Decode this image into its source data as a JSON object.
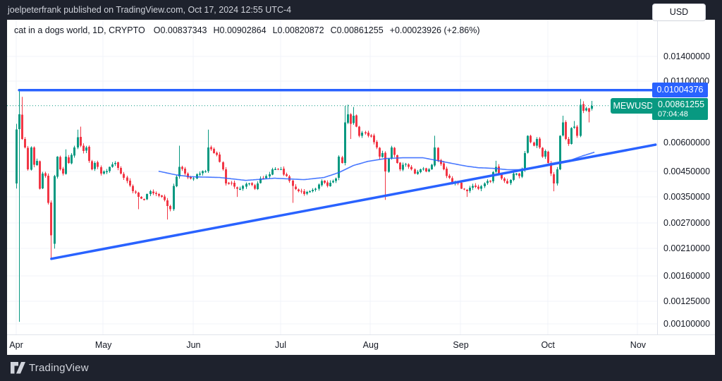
{
  "header_bar": {
    "text": "joelpeterfrank published on TradingView.com, Oct 17, 2024 12:55 UTC-4"
  },
  "legend": {
    "symbol_title": "cat in a dogs world, 1D, CRYPTO",
    "open": "O0.00837343",
    "high": "H0.00902864",
    "low": "L0.00820872",
    "close": "C0.00861255",
    "change": "+0.00023926 (+2.86%)"
  },
  "currency_button_label": "USD",
  "price_labels": {
    "resistance_value": "0.01004376",
    "symbol_badge": "MEWUSD",
    "last_price": "0.00861255",
    "countdown": "07:04:48"
  },
  "footer": {
    "brand": "TradingView"
  },
  "colors": {
    "up": "#089981",
    "down": "#f23645",
    "trend_blue": "#2962ff",
    "ma_blue": "#2962ff",
    "price_line_teal": "#089981",
    "grid": "#f0f3fa",
    "resistance_badge_bg": "#2962ff",
    "last_badge_bg": "#089981",
    "panel_bg": "#ffffff",
    "frame_bg": "#1e222d",
    "axis_text": "#131722"
  },
  "chart_data": {
    "type": "candlestick",
    "title": "cat in a dogs world (MEWUSD) daily chart",
    "interval": "1D",
    "exchange": "CRYPTO",
    "quote_currency": "USD",
    "y_axis": {
      "scale": "log",
      "ticks": [
        {
          "v": 0.014,
          "label": "0.01400000"
        },
        {
          "v": 0.011,
          "label": "0.01100000"
        },
        {
          "v": 0.006,
          "label": "0.00600000"
        },
        {
          "v": 0.0045,
          "label": "0.00450000"
        },
        {
          "v": 0.0035,
          "label": "0.00350000"
        },
        {
          "v": 0.0027,
          "label": "0.00270000"
        },
        {
          "v": 0.0021,
          "label": "0.00210000"
        },
        {
          "v": 0.0016,
          "label": "0.00160000"
        },
        {
          "v": 0.00125,
          "label": "0.00125000"
        },
        {
          "v": 0.001,
          "label": "0.00100000"
        }
      ]
    },
    "x_axis": {
      "unit": "day",
      "start_label": "Apr",
      "months": [
        {
          "day": 0,
          "label": "Apr"
        },
        {
          "day": 30,
          "label": "May"
        },
        {
          "day": 61,
          "label": "Jun"
        },
        {
          "day": 91,
          "label": "Jul"
        },
        {
          "day": 122,
          "label": "Aug"
        },
        {
          "day": 153,
          "label": "Sep"
        },
        {
          "day": 183,
          "label": "Oct"
        },
        {
          "day": 214,
          "label": "Nov"
        }
      ]
    },
    "last_candle": {
      "open": 0.00837343,
      "high": 0.00902864,
      "low": 0.00820872,
      "close": 0.00861255,
      "change": 0.00023926,
      "change_pct": 2.86
    },
    "overlays": {
      "resistance_price": 0.01004376,
      "current_price_line": 0.00861255,
      "ascending_trendline": {
        "from": {
          "day": 12.1,
          "price": 0.0019
        },
        "to": {
          "day": 220,
          "price": 0.00586
        }
      },
      "ma_anchors": [
        [
          49,
          0.00451
        ],
        [
          55,
          0.00435
        ],
        [
          60,
          0.00427
        ],
        [
          70,
          0.00424
        ],
        [
          79,
          0.00412
        ],
        [
          89,
          0.00421
        ],
        [
          99,
          0.00415
        ],
        [
          106,
          0.00424
        ],
        [
          111,
          0.00445
        ],
        [
          116,
          0.00477
        ],
        [
          121,
          0.00497
        ],
        [
          127,
          0.00511
        ],
        [
          133,
          0.00515
        ],
        [
          140,
          0.00515
        ],
        [
          145,
          0.00501
        ],
        [
          150,
          0.00487
        ],
        [
          155,
          0.00474
        ],
        [
          159,
          0.00467
        ],
        [
          164,
          0.00464
        ],
        [
          169,
          0.00458
        ],
        [
          173,
          0.00458
        ],
        [
          176,
          0.00464
        ],
        [
          180,
          0.00474
        ],
        [
          184,
          0.00487
        ],
        [
          187,
          0.00494
        ],
        [
          191,
          0.00504
        ],
        [
          195,
          0.00525
        ],
        [
          199,
          0.00544
        ]
      ]
    },
    "close_anchors": [
      [
        0,
        0.0068
      ],
      [
        1,
        0.0079
      ],
      [
        2,
        0.0062
      ],
      [
        3,
        0.0057
      ],
      [
        4,
        0.0046
      ],
      [
        5,
        0.0057
      ],
      [
        6,
        0.0048
      ],
      [
        7,
        0.005
      ],
      [
        8,
        0.0038
      ],
      [
        9,
        0.0044
      ],
      [
        10,
        0.0043
      ],
      [
        11,
        0.0033
      ],
      [
        12,
        0.0024
      ],
      [
        13,
        0.0043
      ],
      [
        14,
        0.0052
      ],
      [
        15,
        0.0046
      ],
      [
        16,
        0.0044
      ],
      [
        17,
        0.0052
      ],
      [
        18,
        0.0049
      ],
      [
        19,
        0.0053
      ],
      [
        20,
        0.0057
      ],
      [
        21,
        0.0063
      ],
      [
        22,
        0.0058
      ],
      [
        23,
        0.0055
      ],
      [
        24,
        0.0057
      ],
      [
        25,
        0.005
      ],
      [
        26,
        0.0046
      ],
      [
        27,
        0.0049
      ],
      [
        28,
        0.0047
      ],
      [
        29,
        0.0044
      ],
      [
        30,
        0.0045
      ],
      [
        32,
        0.0047
      ],
      [
        34,
        0.0049
      ],
      [
        36,
        0.0044
      ],
      [
        38,
        0.0041
      ],
      [
        40,
        0.0037
      ],
      [
        42,
        0.0035
      ],
      [
        44,
        0.0034
      ],
      [
        46,
        0.0037
      ],
      [
        48,
        0.0036
      ],
      [
        50,
        0.0035
      ],
      [
        52,
        0.0032
      ],
      [
        53,
        0.0031
      ],
      [
        54,
        0.0039
      ],
      [
        56,
        0.0047
      ],
      [
        58,
        0.0044
      ],
      [
        60,
        0.0042
      ],
      [
        61,
        0.0042
      ],
      [
        63,
        0.0044
      ],
      [
        65,
        0.0045
      ],
      [
        66,
        0.0057
      ],
      [
        67,
        0.0056
      ],
      [
        69,
        0.0053
      ],
      [
        71,
        0.0046
      ],
      [
        72,
        0.004
      ],
      [
        74,
        0.004
      ],
      [
        76,
        0.0038
      ],
      [
        78,
        0.0039
      ],
      [
        80,
        0.004
      ],
      [
        82,
        0.0038
      ],
      [
        84,
        0.0042
      ],
      [
        86,
        0.0043
      ],
      [
        88,
        0.0046
      ],
      [
        90,
        0.0046
      ],
      [
        91,
        0.0046
      ],
      [
        93,
        0.0043
      ],
      [
        95,
        0.0039
      ],
      [
        97,
        0.0037
      ],
      [
        99,
        0.0036
      ],
      [
        101,
        0.0037
      ],
      [
        103,
        0.0038
      ],
      [
        105,
        0.0041
      ],
      [
        107,
        0.0039
      ],
      [
        109,
        0.0041
      ],
      [
        110,
        0.0042
      ],
      [
        111,
        0.0052
      ],
      [
        112,
        0.0049
      ],
      [
        113,
        0.0073
      ],
      [
        114,
        0.0079
      ],
      [
        115,
        0.0072
      ],
      [
        116,
        0.0078
      ],
      [
        117,
        0.007
      ],
      [
        118,
        0.0064
      ],
      [
        119,
        0.0066
      ],
      [
        120,
        0.0066
      ],
      [
        121,
        0.0064
      ],
      [
        122,
        0.0064
      ],
      [
        123,
        0.006
      ],
      [
        124,
        0.0057
      ],
      [
        125,
        0.0052
      ],
      [
        126,
        0.0054
      ],
      [
        127,
        0.0045
      ],
      [
        128,
        0.0051
      ],
      [
        129,
        0.0057
      ],
      [
        130,
        0.0053
      ],
      [
        131,
        0.0049
      ],
      [
        132,
        0.0046
      ],
      [
        133,
        0.0048
      ],
      [
        135,
        0.0047
      ],
      [
        137,
        0.0044
      ],
      [
        139,
        0.0046
      ],
      [
        141,
        0.0045
      ],
      [
        143,
        0.0048
      ],
      [
        144,
        0.0057
      ],
      [
        145,
        0.005
      ],
      [
        147,
        0.0046
      ],
      [
        148,
        0.0043
      ],
      [
        150,
        0.004
      ],
      [
        152,
        0.004
      ],
      [
        153,
        0.0038
      ],
      [
        155,
        0.0037
      ],
      [
        157,
        0.0039
      ],
      [
        159,
        0.0038
      ],
      [
        161,
        0.004
      ],
      [
        163,
        0.0041
      ],
      [
        165,
        0.0047
      ],
      [
        166,
        0.0044
      ],
      [
        167,
        0.0042
      ],
      [
        169,
        0.004
      ],
      [
        171,
        0.0044
      ],
      [
        173,
        0.0043
      ],
      [
        174,
        0.0046
      ],
      [
        175,
        0.0054
      ],
      [
        176,
        0.0064
      ],
      [
        177,
        0.006
      ],
      [
        178,
        0.0058
      ],
      [
        179,
        0.0062
      ],
      [
        180,
        0.0057
      ],
      [
        181,
        0.0052
      ],
      [
        182,
        0.0055
      ],
      [
        183,
        0.0049
      ],
      [
        184,
        0.0044
      ],
      [
        185,
        0.004
      ],
      [
        186,
        0.0046
      ],
      [
        187,
        0.0064
      ],
      [
        188,
        0.0073
      ],
      [
        189,
        0.0062
      ],
      [
        190,
        0.0059
      ],
      [
        191,
        0.0069
      ],
      [
        192,
        0.007
      ],
      [
        193,
        0.0064
      ],
      [
        194,
        0.0087
      ],
      [
        195,
        0.0082
      ],
      [
        196,
        0.0084
      ],
      [
        197,
        0.0081
      ],
      [
        198,
        0.00861255
      ]
    ],
    "candle_overrides": {
      "0": {
        "o": 0.004,
        "h": 0.0072,
        "l": 0.0038
      },
      "1": {
        "h": 0.01004376,
        "l": 0.00102
      },
      "2": {
        "h": 0.0094
      },
      "12": {
        "l": 0.0019
      },
      "13": {
        "o": 0.0022,
        "l": 0.0021
      },
      "17": {
        "h": 0.0056
      },
      "21": {
        "h": 0.0068
      },
      "22": {
        "h": 0.007
      },
      "42": {
        "l": 0.0031
      },
      "52": {
        "l": 0.0028
      },
      "56": {
        "h": 0.0058
      },
      "66": {
        "h": 0.0068
      },
      "76": {
        "l": 0.0035
      },
      "95": {
        "l": 0.0033
      },
      "113": {
        "o": 0.0049,
        "h": 0.0086
      },
      "114": {
        "h": 0.0087
      },
      "115": {
        "l": 0.0062
      },
      "116": {
        "h": 0.0085
      },
      "127": {
        "l": 0.0034
      },
      "144": {
        "h": 0.0064
      },
      "155": {
        "l": 0.0035
      },
      "165": {
        "h": 0.005
      },
      "185": {
        "l": 0.0037
      },
      "188": {
        "h": 0.0078
      },
      "192": {
        "h": 0.0074
      },
      "194": {
        "o": 0.0064,
        "h": 0.0092
      },
      "195": {
        "h": 0.009
      },
      "197": {
        "l": 0.0073
      },
      "198": {
        "o": 0.00837343,
        "h": 0.00902864,
        "l": 0.00820872,
        "c": 0.00861255
      }
    }
  }
}
